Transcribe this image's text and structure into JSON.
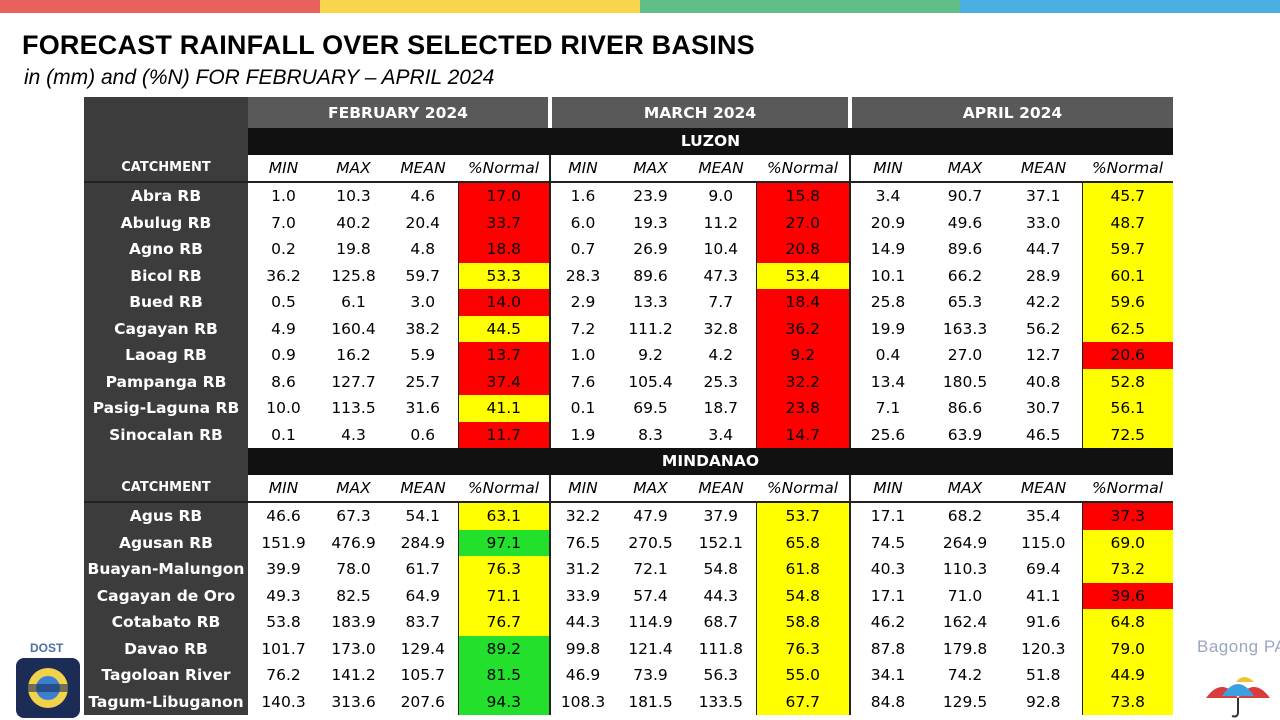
{
  "page": {
    "title": "FORECAST RAINFALL OVER SELECTED RIVER BASINS",
    "subtitle": "in (mm) and (%N) FOR  FEBRUARY – APRIL 2024"
  },
  "colors": {
    "top_bar": [
      "#e8615d",
      "#f7d64d",
      "#5fbf86",
      "#4aaee0"
    ],
    "below_normal": "#ff0000",
    "near_normal": "#ffff00",
    "normal": "#22e02c"
  },
  "months": [
    "FEBRUARY 2024",
    "MARCH 2024",
    "APRIL 2024"
  ],
  "columns": [
    "MIN",
    "MAX",
    "MEAN",
    "%Normal"
  ],
  "catchment_label": "CATCHMENT",
  "regions": [
    {
      "name": "LUZON",
      "rows": [
        {
          "name": "Abra RB",
          "vals": [
            "1.0",
            "10.3",
            "4.6",
            "17.0",
            "1.6",
            "23.9",
            "9.0",
            "15.8",
            "3.4",
            "90.7",
            "37.1",
            "45.7"
          ],
          "cls": [
            "r",
            "r",
            "y"
          ]
        },
        {
          "name": "Abulug RB",
          "vals": [
            "7.0",
            "40.2",
            "20.4",
            "33.7",
            "6.0",
            "19.3",
            "11.2",
            "27.0",
            "20.9",
            "49.6",
            "33.0",
            "48.7"
          ],
          "cls": [
            "r",
            "r",
            "y"
          ]
        },
        {
          "name": "Agno RB",
          "vals": [
            "0.2",
            "19.8",
            "4.8",
            "18.8",
            "0.7",
            "26.9",
            "10.4",
            "20.8",
            "14.9",
            "89.6",
            "44.7",
            "59.7"
          ],
          "cls": [
            "r",
            "r",
            "y"
          ]
        },
        {
          "name": "Bicol RB",
          "vals": [
            "36.2",
            "125.8",
            "59.7",
            "53.3",
            "28.3",
            "89.6",
            "47.3",
            "53.4",
            "10.1",
            "66.2",
            "28.9",
            "60.1"
          ],
          "cls": [
            "y",
            "y",
            "y"
          ]
        },
        {
          "name": "Bued RB",
          "vals": [
            "0.5",
            "6.1",
            "3.0",
            "14.0",
            "2.9",
            "13.3",
            "7.7",
            "18.4",
            "25.8",
            "65.3",
            "42.2",
            "59.6"
          ],
          "cls": [
            "r",
            "r",
            "y"
          ]
        },
        {
          "name": "Cagayan RB",
          "vals": [
            "4.9",
            "160.4",
            "38.2",
            "44.5",
            "7.2",
            "111.2",
            "32.8",
            "36.2",
            "19.9",
            "163.3",
            "56.2",
            "62.5"
          ],
          "cls": [
            "y",
            "r",
            "y"
          ]
        },
        {
          "name": "Laoag RB",
          "vals": [
            "0.9",
            "16.2",
            "5.9",
            "13.7",
            "1.0",
            "9.2",
            "4.2",
            "9.2",
            "0.4",
            "27.0",
            "12.7",
            "20.6"
          ],
          "cls": [
            "r",
            "r",
            "r"
          ]
        },
        {
          "name": "Pampanga RB",
          "vals": [
            "8.6",
            "127.7",
            "25.7",
            "37.4",
            "7.6",
            "105.4",
            "25.3",
            "32.2",
            "13.4",
            "180.5",
            "40.8",
            "52.8"
          ],
          "cls": [
            "r",
            "r",
            "y"
          ]
        },
        {
          "name": "Pasig-Laguna RB",
          "vals": [
            "10.0",
            "113.5",
            "31.6",
            "41.1",
            "0.1",
            "69.5",
            "18.7",
            "23.8",
            "7.1",
            "86.6",
            "30.7",
            "56.1"
          ],
          "cls": [
            "y",
            "r",
            "y"
          ]
        },
        {
          "name": "Sinocalan RB",
          "vals": [
            "0.1",
            "4.3",
            "0.6",
            "11.7",
            "1.9",
            "8.3",
            "3.4",
            "14.7",
            "25.6",
            "63.9",
            "46.5",
            "72.5"
          ],
          "cls": [
            "r",
            "r",
            "y"
          ]
        }
      ]
    },
    {
      "name": "MINDANAO",
      "rows": [
        {
          "name": "Agus RB",
          "vals": [
            "46.6",
            "67.3",
            "54.1",
            "63.1",
            "32.2",
            "47.9",
            "37.9",
            "53.7",
            "17.1",
            "68.2",
            "35.4",
            "37.3"
          ],
          "cls": [
            "y",
            "y",
            "r"
          ]
        },
        {
          "name": "Agusan RB",
          "vals": [
            "151.9",
            "476.9",
            "284.9",
            "97.1",
            "76.5",
            "270.5",
            "152.1",
            "65.8",
            "74.5",
            "264.9",
            "115.0",
            "69.0"
          ],
          "cls": [
            "g",
            "y",
            "y"
          ]
        },
        {
          "name": "Buayan-Malungon",
          "vals": [
            "39.9",
            "78.0",
            "61.7",
            "76.3",
            "31.2",
            "72.1",
            "54.8",
            "61.8",
            "40.3",
            "110.3",
            "69.4",
            "73.2"
          ],
          "cls": [
            "y",
            "y",
            "y"
          ]
        },
        {
          "name": "Cagayan de Oro",
          "vals": [
            "49.3",
            "82.5",
            "64.9",
            "71.1",
            "33.9",
            "57.4",
            "44.3",
            "54.8",
            "17.1",
            "71.0",
            "41.1",
            "39.6"
          ],
          "cls": [
            "y",
            "y",
            "r"
          ]
        },
        {
          "name": "Cotabato RB",
          "vals": [
            "53.8",
            "183.9",
            "83.7",
            "76.7",
            "44.3",
            "114.9",
            "68.7",
            "58.8",
            "46.2",
            "162.4",
            "91.6",
            "64.8"
          ],
          "cls": [
            "y",
            "y",
            "y"
          ]
        },
        {
          "name": "Davao RB",
          "vals": [
            "101.7",
            "173.0",
            "129.4",
            "89.2",
            "99.8",
            "121.4",
            "111.8",
            "76.3",
            "87.8",
            "179.8",
            "120.3",
            "79.0"
          ],
          "cls": [
            "g",
            "y",
            "y"
          ]
        },
        {
          "name": "Tagoloan River",
          "vals": [
            "76.2",
            "141.2",
            "105.7",
            "81.5",
            "46.9",
            "73.9",
            "56.3",
            "55.0",
            "34.1",
            "74.2",
            "51.8",
            "44.9"
          ],
          "cls": [
            "g",
            "y",
            "y"
          ]
        },
        {
          "name": "Tagum-Libuganon",
          "vals": [
            "140.3",
            "313.6",
            "207.6",
            "94.3",
            "108.3",
            "181.5",
            "133.5",
            "67.7",
            "84.8",
            "129.5",
            "92.8",
            "73.8"
          ],
          "cls": [
            "g",
            "y",
            "y"
          ]
        }
      ]
    }
  ],
  "logos": {
    "left": {
      "text": "DOST",
      "icon": "dost-logo-icon"
    },
    "right": {
      "text": "Bagong PAGASA",
      "icon": "umbrella-logo-icon"
    }
  }
}
